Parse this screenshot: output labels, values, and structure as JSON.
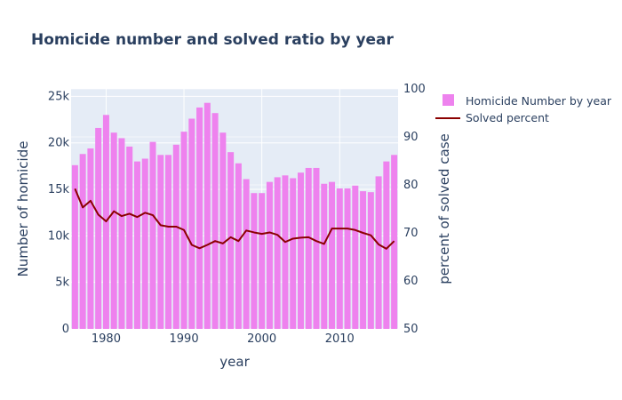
{
  "chart_data": {
    "type": "bar",
    "title": "Homicide number and solved ratio by year",
    "xlabel": "year",
    "ylabel": "Number of homicide",
    "y2label": "percent of solved case",
    "xlim": [
      1975.5,
      2017.5
    ],
    "ylim": [
      0,
      25800
    ],
    "y2lim": [
      50,
      100
    ],
    "x_ticks": [
      1980,
      1990,
      2000,
      2010
    ],
    "y_ticks": [
      0,
      5000,
      10000,
      15000,
      20000,
      25000
    ],
    "y_tick_labels": [
      "0",
      "5k",
      "10k",
      "15k",
      "20k",
      "25k"
    ],
    "y2_ticks": [
      50,
      60,
      70,
      80,
      90,
      100
    ],
    "grid": true,
    "legend_position": "top-right",
    "x": [
      1976,
      1977,
      1978,
      1979,
      1980,
      1981,
      1982,
      1983,
      1984,
      1985,
      1986,
      1987,
      1988,
      1989,
      1990,
      1991,
      1992,
      1993,
      1994,
      1995,
      1996,
      1997,
      1998,
      1999,
      2000,
      2001,
      2002,
      2003,
      2004,
      2005,
      2006,
      2007,
      2008,
      2009,
      2010,
      2011,
      2012,
      2013,
      2014,
      2015,
      2016,
      2017
    ],
    "series": [
      {
        "name": "Homicide Number by year",
        "type": "bar",
        "axis": "y",
        "color": "#ee82ee",
        "values": [
          17600,
          18800,
          19400,
          21600,
          23000,
          21100,
          20500,
          19600,
          18000,
          18300,
          20100,
          18700,
          18700,
          19800,
          21200,
          22600,
          23800,
          24300,
          23200,
          21100,
          19000,
          17800,
          16100,
          14600,
          14600,
          15800,
          16300,
          16500,
          16200,
          16800,
          17300,
          17300,
          15600,
          15800,
          15100,
          15100,
          15400,
          14800,
          14700,
          16400,
          18000,
          18700
        ]
      },
      {
        "name": "Solved percent",
        "type": "line",
        "axis": "y2",
        "color": "#8b0000",
        "values": [
          79.2,
          75.3,
          76.7,
          73.8,
          72.4,
          74.5,
          73.5,
          74.0,
          73.3,
          74.2,
          73.7,
          71.6,
          71.3,
          71.3,
          70.6,
          67.5,
          66.8,
          67.5,
          68.3,
          67.8,
          69.1,
          68.3,
          70.5,
          70.1,
          69.8,
          70.1,
          69.6,
          68.1,
          68.8,
          69.0,
          69.1,
          68.3,
          67.7,
          70.9,
          70.9,
          70.9,
          70.6,
          70.0,
          69.5,
          67.6,
          66.7,
          68.3
        ]
      }
    ]
  }
}
